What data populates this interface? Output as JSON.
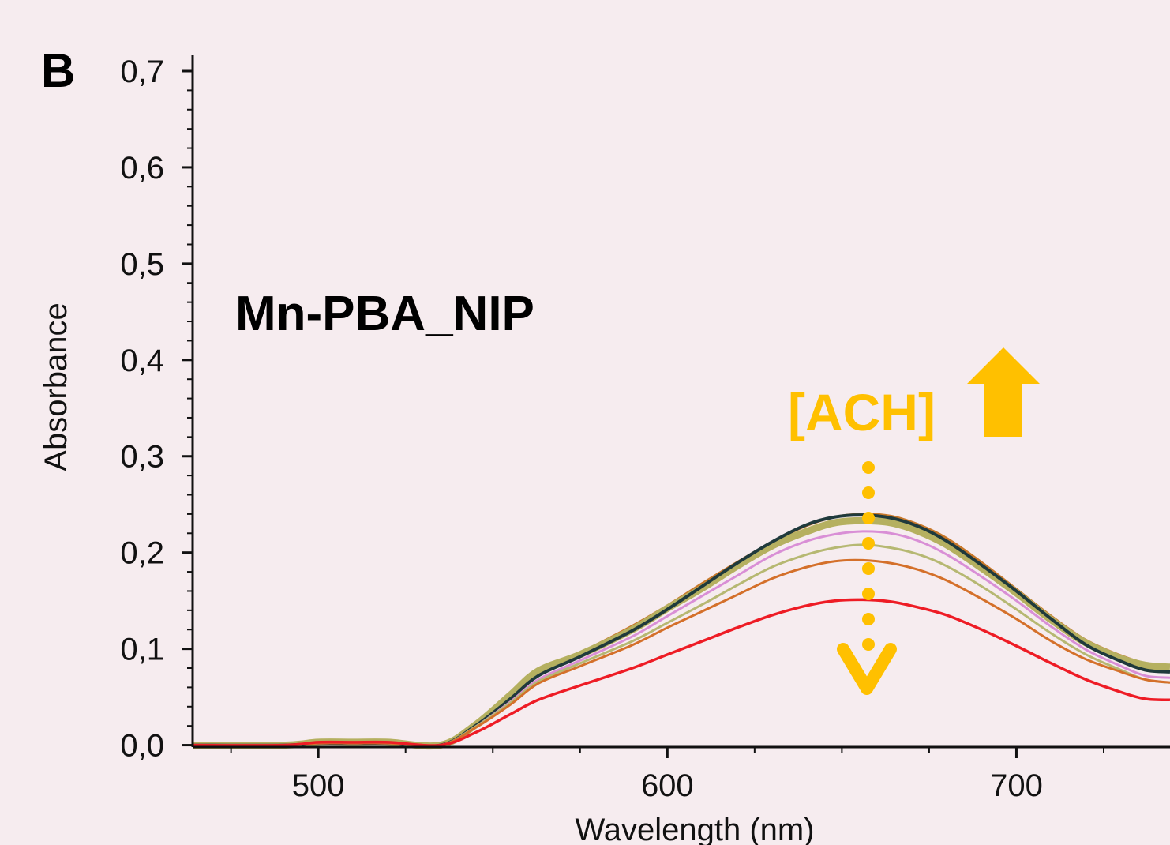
{
  "chart_data": {
    "type": "line",
    "panel_label": "B",
    "xlabel": "Wavelength (nm)",
    "ylabel": "Absorbance",
    "xlim": [
      464,
      744
    ],
    "ylim": [
      -0.002,
      0.7
    ],
    "x_ticks": [
      500,
      600,
      700
    ],
    "x_tick_labels": [
      "500",
      "600",
      "700"
    ],
    "y_ticks": [
      0.0,
      0.1,
      0.2,
      0.3,
      0.4,
      0.5,
      0.6,
      0.7
    ],
    "y_tick_labels": [
      "0,0",
      "0,1",
      "0,2",
      "0,3",
      "0,4",
      "0,5",
      "0,6",
      "0,7"
    ],
    "grid": false,
    "annotations": {
      "sample": "Mn-PBA_NIP",
      "concentration": "[ACH]",
      "arrow_color": "#ffc000"
    },
    "x": [
      464,
      490,
      500,
      510,
      520,
      535,
      545,
      555,
      563,
      575,
      590,
      600,
      610,
      620,
      630,
      640,
      648,
      656,
      664,
      672,
      680,
      690,
      700,
      710,
      720,
      730,
      737,
      744
    ],
    "series": [
      {
        "color": "#c8782a",
        "width": 3,
        "values": [
          0.0,
          0.0,
          0.003,
          0.003,
          0.003,
          0.0,
          0.022,
          0.052,
          0.077,
          0.096,
          0.124,
          0.145,
          0.168,
          0.19,
          0.211,
          0.228,
          0.237,
          0.24,
          0.238,
          0.229,
          0.215,
          0.19,
          0.162,
          0.134,
          0.109,
          0.093,
          0.085,
          0.083
        ]
      },
      {
        "color": "#b5b060",
        "width": 9,
        "values": [
          0.0,
          0.0,
          0.003,
          0.003,
          0.003,
          0.0,
          0.021,
          0.052,
          0.077,
          0.094,
          0.12,
          0.142,
          0.163,
          0.186,
          0.207,
          0.222,
          0.231,
          0.233,
          0.231,
          0.222,
          0.208,
          0.184,
          0.158,
          0.13,
          0.106,
          0.09,
          0.083,
          0.081
        ]
      },
      {
        "color": "#1f3a3c",
        "width": 4,
        "values": [
          0.0,
          0.0,
          0.002,
          0.002,
          0.002,
          0.0,
          0.02,
          0.048,
          0.072,
          0.092,
          0.119,
          0.141,
          0.165,
          0.189,
          0.211,
          0.229,
          0.237,
          0.239,
          0.236,
          0.227,
          0.212,
          0.187,
          0.16,
          0.131,
          0.104,
          0.087,
          0.078,
          0.076
        ]
      },
      {
        "color": "#d98fd6",
        "width": 3,
        "values": [
          0.0,
          0.0,
          0.002,
          0.002,
          0.002,
          0.0,
          0.019,
          0.045,
          0.068,
          0.088,
          0.113,
          0.134,
          0.155,
          0.176,
          0.197,
          0.212,
          0.219,
          0.222,
          0.22,
          0.212,
          0.198,
          0.175,
          0.15,
          0.123,
          0.099,
          0.082,
          0.072,
          0.07
        ]
      },
      {
        "color": "#b6b872",
        "width": 3,
        "values": [
          0.0,
          0.0,
          0.002,
          0.002,
          0.002,
          0.0,
          0.019,
          0.044,
          0.066,
          0.085,
          0.108,
          0.127,
          0.146,
          0.166,
          0.185,
          0.198,
          0.205,
          0.208,
          0.205,
          0.198,
          0.186,
          0.165,
          0.141,
          0.116,
          0.094,
          0.078,
          0.068,
          0.065
        ]
      },
      {
        "color": "#d4702a",
        "width": 3,
        "values": [
          0.0,
          0.0,
          0.002,
          0.002,
          0.002,
          0.0,
          0.018,
          0.042,
          0.064,
          0.082,
          0.104,
          0.122,
          0.139,
          0.156,
          0.173,
          0.185,
          0.191,
          0.192,
          0.189,
          0.182,
          0.171,
          0.152,
          0.131,
          0.108,
          0.089,
          0.076,
          0.068,
          0.065
        ]
      },
      {
        "color": "#ee1c25",
        "width": 3.5,
        "values": [
          0.0,
          0.0,
          0.003,
          0.003,
          0.003,
          0.0,
          0.013,
          0.032,
          0.047,
          0.062,
          0.08,
          0.094,
          0.108,
          0.122,
          0.135,
          0.145,
          0.15,
          0.151,
          0.149,
          0.143,
          0.135,
          0.12,
          0.103,
          0.085,
          0.068,
          0.055,
          0.048,
          0.047
        ]
      }
    ]
  }
}
